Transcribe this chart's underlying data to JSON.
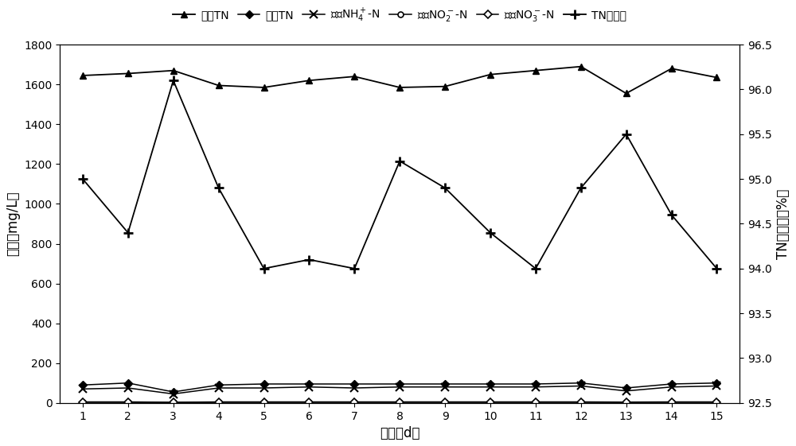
{
  "days": [
    1,
    2,
    3,
    4,
    5,
    6,
    7,
    8,
    9,
    10,
    11,
    12,
    13,
    14,
    15
  ],
  "jin_shui_TN": [
    1645,
    1655,
    1670,
    1595,
    1585,
    1620,
    1640,
    1585,
    1590,
    1650,
    1670,
    1690,
    1555,
    1680,
    1635
  ],
  "chu_shui_TN": [
    90,
    100,
    55,
    90,
    95,
    95,
    95,
    95,
    95,
    95,
    95,
    100,
    75,
    95,
    100
  ],
  "chu_shui_NH4": [
    70,
    75,
    45,
    75,
    75,
    80,
    75,
    80,
    80,
    80,
    80,
    85,
    60,
    80,
    85
  ],
  "chu_shui_NO2": [
    5,
    5,
    3,
    5,
    5,
    5,
    5,
    5,
    5,
    5,
    5,
    5,
    4,
    5,
    5
  ],
  "chu_shui_NO3": [
    3,
    3,
    2,
    3,
    3,
    3,
    3,
    3,
    3,
    3,
    3,
    3,
    3,
    3,
    3
  ],
  "tn_removal_pct": [
    95.0,
    94.4,
    96.1,
    94.9,
    94.0,
    94.1,
    94.0,
    95.2,
    94.9,
    94.4,
    94.0,
    94.9,
    95.5,
    94.6,
    94.0
  ],
  "left_ylim": [
    0,
    1800
  ],
  "left_yticks": [
    0,
    200,
    400,
    600,
    800,
    1000,
    1200,
    1400,
    1600,
    1800
  ],
  "right_ylim": [
    92.5,
    96.5
  ],
  "right_yticks": [
    92.5,
    93.0,
    93.5,
    94.0,
    94.5,
    95.0,
    95.5,
    96.0,
    96.5
  ],
  "xlabel": "时间（d）",
  "ylabel_left": "浓度（mg/L）",
  "ylabel_right": "TN去除率（%）",
  "line_color": "#000000",
  "background_color": "#ffffff",
  "fontsize_legend": 10,
  "fontsize_axis_label": 12,
  "fontsize_tick": 10
}
